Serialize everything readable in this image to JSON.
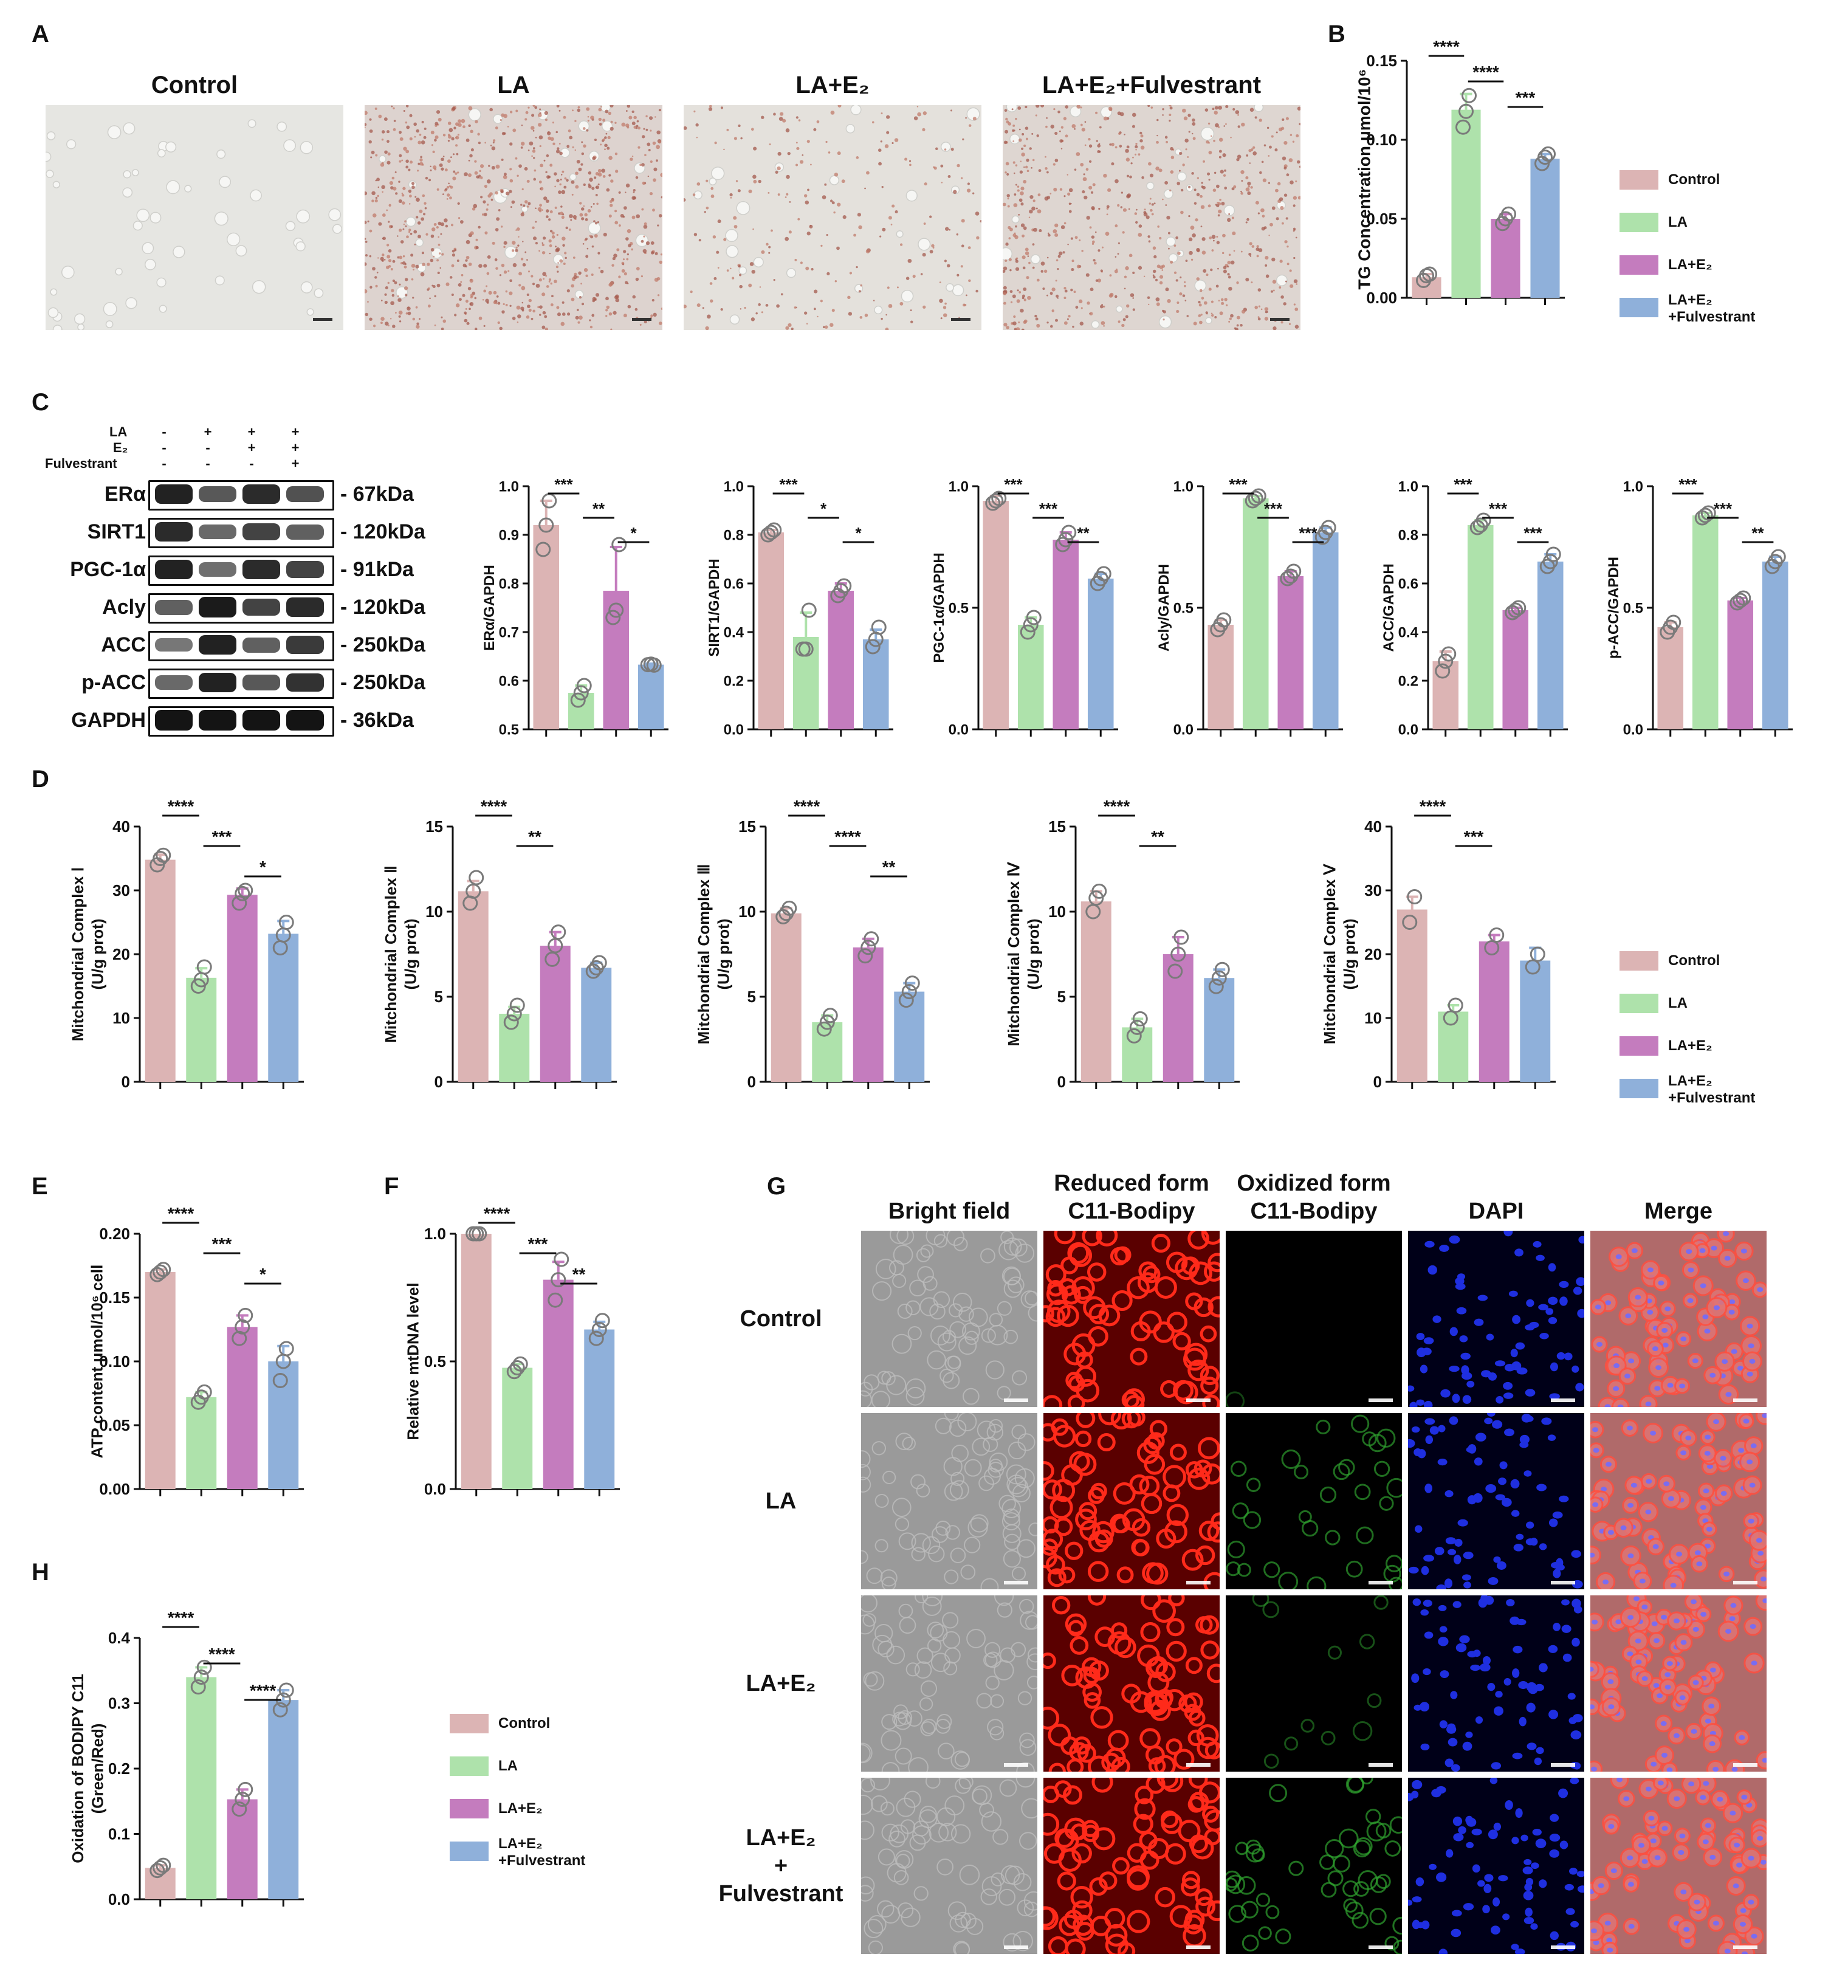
{
  "colors": {
    "Control": "#dcb4b4",
    "LA": "#aee2ab",
    "LA+E2": "#c47cbe",
    "LA+E2+Fulvestrant": "#8fb0da",
    "dot_stroke": "#7a7a7a"
  },
  "panel_labels": [
    "A",
    "B",
    "C",
    "D",
    "E",
    "F",
    "G",
    "H"
  ],
  "panel_a": {
    "titles": [
      "Control",
      "LA",
      "LA+E₂",
      "LA+E₂+Fulvestrant"
    ]
  },
  "legend": {
    "items": [
      "Control",
      "LA",
      "LA+E₂",
      "LA+E₂\n+Fulvestrant"
    ]
  },
  "western_blot": {
    "treatments": [
      {
        "label": "LA",
        "marks": [
          "-",
          "+",
          "+",
          "+"
        ]
      },
      {
        "label": "E₂",
        "marks": [
          "-",
          "-",
          "+",
          "+"
        ]
      },
      {
        "label": "Fulvestrant",
        "marks": [
          "-",
          "-",
          "-",
          "+"
        ]
      }
    ],
    "bands": [
      {
        "protein": "ERα",
        "kda": "- 67kDa",
        "intensity": [
          0.9,
          0.55,
          0.85,
          0.6
        ]
      },
      {
        "protein": "SIRT1",
        "kda": "- 120kDa",
        "intensity": [
          0.85,
          0.45,
          0.7,
          0.5
        ]
      },
      {
        "protein": "PGC-1α",
        "kda": "- 91kDa",
        "intensity": [
          0.9,
          0.4,
          0.85,
          0.7
        ]
      },
      {
        "protein": "Acly",
        "kda": "- 120kDa",
        "intensity": [
          0.5,
          0.95,
          0.7,
          0.85
        ]
      },
      {
        "protein": "ACC",
        "kda": "- 250kDa",
        "intensity": [
          0.35,
          0.9,
          0.5,
          0.75
        ]
      },
      {
        "protein": "p-ACC",
        "kda": "- 250kDa",
        "intensity": [
          0.45,
          0.9,
          0.55,
          0.8
        ]
      },
      {
        "protein": "GAPDH",
        "kda": "- 36kDa",
        "intensity": [
          1,
          1,
          1,
          1
        ]
      }
    ]
  },
  "panel_g": {
    "columns": [
      "Bright field",
      "Reduced form\nC11-Bodipy",
      "Oxidized form\nC11-Bodipy",
      "DAPI",
      "Merge"
    ],
    "rows": [
      "Control",
      "LA",
      "LA+E₂",
      "LA+E₂\n+\nFulvestrant"
    ],
    "oxidized_green_level": [
      0.02,
      0.55,
      0.2,
      0.6
    ]
  },
  "chart_data": [
    {
      "id": "B",
      "type": "bar",
      "categories": [
        "Control",
        "LA",
        "LA+E₂",
        "LA+E₂+Fulvestrant"
      ],
      "values": [
        0.013,
        0.119,
        0.05,
        0.088
      ],
      "points": [
        [
          0.011,
          0.014,
          0.015
        ],
        [
          0.108,
          0.118,
          0.128
        ],
        [
          0.047,
          0.05,
          0.053
        ],
        [
          0.085,
          0.089,
          0.091
        ]
      ],
      "errors": [
        0.002,
        0.01,
        0.003,
        0.003
      ],
      "ylabel": "TG Concentration μmol/10⁶",
      "ylim": [
        0,
        0.15
      ],
      "yticks": [
        "0.00",
        "0.05",
        "0.10",
        "0.15"
      ],
      "sig": [
        {
          "i": 0,
          "j": 1,
          "label": "****"
        },
        {
          "i": 1,
          "j": 2,
          "label": "****"
        },
        {
          "i": 2,
          "j": 3,
          "label": "***"
        }
      ]
    },
    {
      "id": "C1",
      "type": "bar",
      "categories": [
        "Control",
        "LA",
        "LA+E₂",
        "LA+E₂+Fulvestrant"
      ],
      "values": [
        0.92,
        0.575,
        0.785,
        0.633
      ],
      "points": [
        [
          0.87,
          0.92,
          0.97
        ],
        [
          0.56,
          0.575,
          0.59
        ],
        [
          0.73,
          0.745,
          0.88
        ],
        [
          0.633,
          0.634,
          0.632
        ]
      ],
      "errors": [
        0.05,
        0.015,
        0.09,
        0.002
      ],
      "ylabel": "ERα/GAPDH",
      "ylim": [
        0.5,
        1.0
      ],
      "yticks": [
        "0.5",
        "0.6",
        "0.7",
        "0.8",
        "0.9",
        "1.0"
      ],
      "sig": [
        {
          "i": 0,
          "j": 1,
          "label": "***"
        },
        {
          "i": 1,
          "j": 2,
          "label": "**"
        },
        {
          "i": 2,
          "j": 3,
          "label": "*"
        }
      ]
    },
    {
      "id": "C2",
      "type": "bar",
      "categories": [
        "Control",
        "LA",
        "LA+E₂",
        "LA+E₂+Fulvestrant"
      ],
      "values": [
        0.81,
        0.38,
        0.57,
        0.37
      ],
      "points": [
        [
          0.8,
          0.81,
          0.82
        ],
        [
          0.33,
          0.33,
          0.49
        ],
        [
          0.55,
          0.57,
          0.59
        ],
        [
          0.34,
          0.37,
          0.42
        ]
      ],
      "errors": [
        0.01,
        0.1,
        0.03,
        0.04
      ],
      "ylabel": "SIRT1/GAPDH",
      "ylim": [
        0,
        1.0
      ],
      "yticks": [
        "0.0",
        "0.2",
        "0.4",
        "0.6",
        "0.8",
        "1.0"
      ],
      "sig": [
        {
          "i": 0,
          "j": 1,
          "label": "***"
        },
        {
          "i": 1,
          "j": 2,
          "label": "*"
        },
        {
          "i": 2,
          "j": 3,
          "label": "*"
        }
      ]
    },
    {
      "id": "C3",
      "type": "bar",
      "categories": [
        "Control",
        "LA",
        "LA+E₂",
        "LA+E₂+Fulvestrant"
      ],
      "values": [
        0.94,
        0.43,
        0.78,
        0.62
      ],
      "points": [
        [
          0.93,
          0.94,
          0.95
        ],
        [
          0.4,
          0.43,
          0.46
        ],
        [
          0.76,
          0.78,
          0.81
        ],
        [
          0.6,
          0.62,
          0.64
        ]
      ],
      "errors": [
        0.02,
        0.03,
        0.03,
        0.02
      ],
      "ylabel": "PGC-1α/GAPDH",
      "ylim": [
        0,
        1.0
      ],
      "yticks": [
        "0.0",
        "0.5",
        "1.0"
      ],
      "sig": [
        {
          "i": 0,
          "j": 1,
          "label": "***"
        },
        {
          "i": 1,
          "j": 2,
          "label": "***"
        },
        {
          "i": 2,
          "j": 3,
          "label": "**"
        }
      ]
    },
    {
      "id": "C4",
      "type": "bar",
      "categories": [
        "Control",
        "LA",
        "LA+E₂",
        "LA+E₂+Fulvestrant"
      ],
      "values": [
        0.43,
        0.95,
        0.63,
        0.81
      ],
      "points": [
        [
          0.41,
          0.43,
          0.45
        ],
        [
          0.94,
          0.95,
          0.96
        ],
        [
          0.62,
          0.63,
          0.65
        ],
        [
          0.79,
          0.81,
          0.83
        ]
      ],
      "errors": [
        0.02,
        0.01,
        0.02,
        0.02
      ],
      "ylabel": "Acly/GAPDH",
      "ylim": [
        0,
        1.0
      ],
      "yticks": [
        "0.0",
        "0.5",
        "1.0"
      ],
      "sig": [
        {
          "i": 0,
          "j": 1,
          "label": "***"
        },
        {
          "i": 1,
          "j": 2,
          "label": "***"
        },
        {
          "i": 2,
          "j": 3,
          "label": "***"
        }
      ]
    },
    {
      "id": "C5",
      "type": "bar",
      "categories": [
        "Control",
        "LA",
        "LA+E₂",
        "LA+E₂+Fulvestrant"
      ],
      "values": [
        0.28,
        0.84,
        0.49,
        0.69
      ],
      "points": [
        [
          0.24,
          0.28,
          0.31
        ],
        [
          0.83,
          0.84,
          0.86
        ],
        [
          0.48,
          0.49,
          0.5
        ],
        [
          0.67,
          0.69,
          0.72
        ]
      ],
      "errors": [
        0.04,
        0.02,
        0.01,
        0.03
      ],
      "ylabel": "ACC/GAPDH",
      "ylim": [
        0,
        1.0
      ],
      "yticks": [
        "0.0",
        "0.2",
        "0.4",
        "0.6",
        "0.8",
        "1.0"
      ],
      "sig": [
        {
          "i": 0,
          "j": 1,
          "label": "***"
        },
        {
          "i": 1,
          "j": 2,
          "label": "***"
        },
        {
          "i": 2,
          "j": 3,
          "label": "***"
        }
      ]
    },
    {
      "id": "C6",
      "type": "bar",
      "categories": [
        "Control",
        "LA",
        "LA+E₂",
        "LA+E₂+Fulvestrant"
      ],
      "values": [
        0.42,
        0.88,
        0.53,
        0.69
      ],
      "points": [
        [
          0.4,
          0.42,
          0.44
        ],
        [
          0.87,
          0.88,
          0.89
        ],
        [
          0.52,
          0.53,
          0.54
        ],
        [
          0.67,
          0.69,
          0.71
        ]
      ],
      "errors": [
        0.02,
        0.01,
        0.01,
        0.02
      ],
      "ylabel": "p-ACC/GAPDH",
      "ylim": [
        0,
        1.0
      ],
      "yticks": [
        "0.0",
        "0.5",
        "1.0"
      ],
      "sig": [
        {
          "i": 0,
          "j": 1,
          "label": "***"
        },
        {
          "i": 1,
          "j": 2,
          "label": "***"
        },
        {
          "i": 2,
          "j": 3,
          "label": "**"
        }
      ]
    },
    {
      "id": "D1",
      "type": "bar",
      "categories": [
        "Control",
        "LA",
        "LA+E₂",
        "LA+E₂+Fulvestrant"
      ],
      "values": [
        34.8,
        16.3,
        29.3,
        23.2
      ],
      "points": [
        [
          34,
          35,
          35.5
        ],
        [
          15,
          16,
          18
        ],
        [
          28,
          29.5,
          30
        ],
        [
          21,
          23,
          25
        ]
      ],
      "errors": [
        0.8,
        1.5,
        1.0,
        2.0
      ],
      "ylabel": "Mitchondrial Complex Ⅰ\n(U/g prot)",
      "ylim": [
        0,
        40
      ],
      "yticks": [
        "0",
        "10",
        "20",
        "30",
        "40"
      ],
      "sig": [
        {
          "i": 0,
          "j": 1,
          "label": "****"
        },
        {
          "i": 1,
          "j": 2,
          "label": "***"
        },
        {
          "i": 2,
          "j": 3,
          "label": "*"
        }
      ]
    },
    {
      "id": "D2",
      "type": "bar",
      "categories": [
        "Control",
        "LA",
        "LA+E₂",
        "LA+E₂+Fulvestrant"
      ],
      "values": [
        11.2,
        4.0,
        8.0,
        6.7
      ],
      "points": [
        [
          10.5,
          11.2,
          12
        ],
        [
          3.5,
          4.0,
          4.5
        ],
        [
          7.2,
          8.0,
          8.8
        ],
        [
          6.5,
          6.7,
          7.0
        ]
      ],
      "errors": [
        0.6,
        0.4,
        0.8,
        0.3
      ],
      "ylabel": "Mitchondrial Complex Ⅱ\n(U/g prot)",
      "ylim": [
        0,
        15
      ],
      "yticks": [
        "0",
        "5",
        "10",
        "15"
      ],
      "sig": [
        {
          "i": 0,
          "j": 1,
          "label": "****"
        },
        {
          "i": 1,
          "j": 2,
          "label": "**"
        }
      ]
    },
    {
      "id": "D3",
      "type": "bar",
      "categories": [
        "Control",
        "LA",
        "LA+E₂",
        "LA+E₂+Fulvestrant"
      ],
      "values": [
        9.9,
        3.5,
        7.9,
        5.3
      ],
      "points": [
        [
          9.7,
          9.9,
          10.2
        ],
        [
          3.1,
          3.5,
          3.9
        ],
        [
          7.4,
          7.9,
          8.4
        ],
        [
          4.8,
          5.3,
          5.8
        ]
      ],
      "errors": [
        0.3,
        0.4,
        0.5,
        0.5
      ],
      "ylabel": "Mitchondrial Complex Ⅲ\n(U/g prot)",
      "ylim": [
        0,
        15
      ],
      "yticks": [
        "0",
        "5",
        "10",
        "15"
      ],
      "sig": [
        {
          "i": 0,
          "j": 1,
          "label": "****"
        },
        {
          "i": 1,
          "j": 2,
          "label": "****"
        },
        {
          "i": 2,
          "j": 3,
          "label": "**"
        }
      ]
    },
    {
      "id": "D4",
      "type": "bar",
      "categories": [
        "Control",
        "LA",
        "LA+E₂",
        "LA+E₂+Fulvestrant"
      ],
      "values": [
        10.6,
        3.2,
        7.5,
        6.1
      ],
      "points": [
        [
          10,
          10.8,
          11.2
        ],
        [
          2.7,
          3.2,
          3.7
        ],
        [
          6.5,
          7.5,
          8.5
        ],
        [
          5.6,
          6.1,
          6.6
        ]
      ],
      "errors": [
        0.6,
        0.5,
        1.0,
        0.5
      ],
      "ylabel": "Mitchondrial Complex Ⅳ\n(U/g prot)",
      "ylim": [
        0,
        15
      ],
      "yticks": [
        "0",
        "5",
        "10",
        "15"
      ],
      "sig": [
        {
          "i": 0,
          "j": 1,
          "label": "****"
        },
        {
          "i": 1,
          "j": 2,
          "label": "**"
        }
      ]
    },
    {
      "id": "D5",
      "type": "bar",
      "categories": [
        "Control",
        "LA",
        "LA+E₂",
        "LA+E₂+Fulvestrant"
      ],
      "values": [
        27,
        11,
        22,
        19
      ],
      "points": [
        [
          25,
          29
        ],
        [
          10,
          12
        ],
        [
          21,
          23
        ],
        [
          18,
          20
        ]
      ],
      "errors": [
        2,
        1,
        1,
        2
      ],
      "ylabel": "Mitchondrial Complex Ⅴ\n(U/g prot)",
      "ylim": [
        0,
        40
      ],
      "yticks": [
        "0",
        "10",
        "20",
        "30",
        "40"
      ],
      "sig": [
        {
          "i": 0,
          "j": 1,
          "label": "****"
        },
        {
          "i": 1,
          "j": 2,
          "label": "***"
        }
      ]
    },
    {
      "id": "E",
      "type": "bar",
      "categories": [
        "Control",
        "LA",
        "LA+E₂",
        "LA+E₂+Fulvestrant"
      ],
      "values": [
        0.17,
        0.072,
        0.127,
        0.1
      ],
      "points": [
        [
          0.168,
          0.17,
          0.172
        ],
        [
          0.068,
          0.072,
          0.076
        ],
        [
          0.118,
          0.127,
          0.136
        ],
        [
          0.085,
          0.1,
          0.11
        ]
      ],
      "errors": [
        0.002,
        0.004,
        0.009,
        0.012
      ],
      "ylabel": "ATP content μmol/10⁶ cell",
      "ylim": [
        0,
        0.2
      ],
      "yticks": [
        "0.00",
        "0.05",
        "0.10",
        "0.15",
        "0.20"
      ],
      "sig": [
        {
          "i": 0,
          "j": 1,
          "label": "****"
        },
        {
          "i": 1,
          "j": 2,
          "label": "***"
        },
        {
          "i": 2,
          "j": 3,
          "label": "*"
        }
      ]
    },
    {
      "id": "F",
      "type": "bar",
      "categories": [
        "Control",
        "LA",
        "LA+E₂",
        "LA+E₂+Fulvestrant"
      ],
      "values": [
        1.0,
        0.475,
        0.82,
        0.625
      ],
      "points": [
        [
          1.0,
          1.0,
          1.0
        ],
        [
          0.46,
          0.475,
          0.49
        ],
        [
          0.74,
          0.82,
          0.9
        ],
        [
          0.59,
          0.625,
          0.66
        ]
      ],
      "errors": [
        0,
        0.015,
        0.07,
        0.03
      ],
      "ylabel": "Relative mtDNA level",
      "ylim": [
        0,
        1.0
      ],
      "yticks": [
        "0.0",
        "0.5",
        "1.0"
      ],
      "sig": [
        {
          "i": 0,
          "j": 1,
          "label": "****"
        },
        {
          "i": 1,
          "j": 2,
          "label": "***"
        },
        {
          "i": 2,
          "j": 3,
          "label": "**"
        }
      ]
    },
    {
      "id": "H",
      "type": "bar",
      "categories": [
        "Control",
        "LA",
        "LA+E₂",
        "LA+E₂+Fulvestrant"
      ],
      "values": [
        0.048,
        0.34,
        0.153,
        0.305
      ],
      "points": [
        [
          0.044,
          0.048,
          0.052
        ],
        [
          0.325,
          0.34,
          0.355
        ],
        [
          0.138,
          0.153,
          0.168
        ],
        [
          0.29,
          0.305,
          0.32
        ]
      ],
      "errors": [
        0.004,
        0.015,
        0.015,
        0.015
      ],
      "ylabel": "Oxidation of BODIPY C11\n(Green/Red)",
      "ylim": [
        0,
        0.4
      ],
      "yticks": [
        "0.0",
        "0.1",
        "0.2",
        "0.3",
        "0.4"
      ],
      "sig": [
        {
          "i": 0,
          "j": 1,
          "label": "****"
        },
        {
          "i": 1,
          "j": 2,
          "label": "****"
        },
        {
          "i": 2,
          "j": 3,
          "label": "****"
        }
      ]
    }
  ]
}
